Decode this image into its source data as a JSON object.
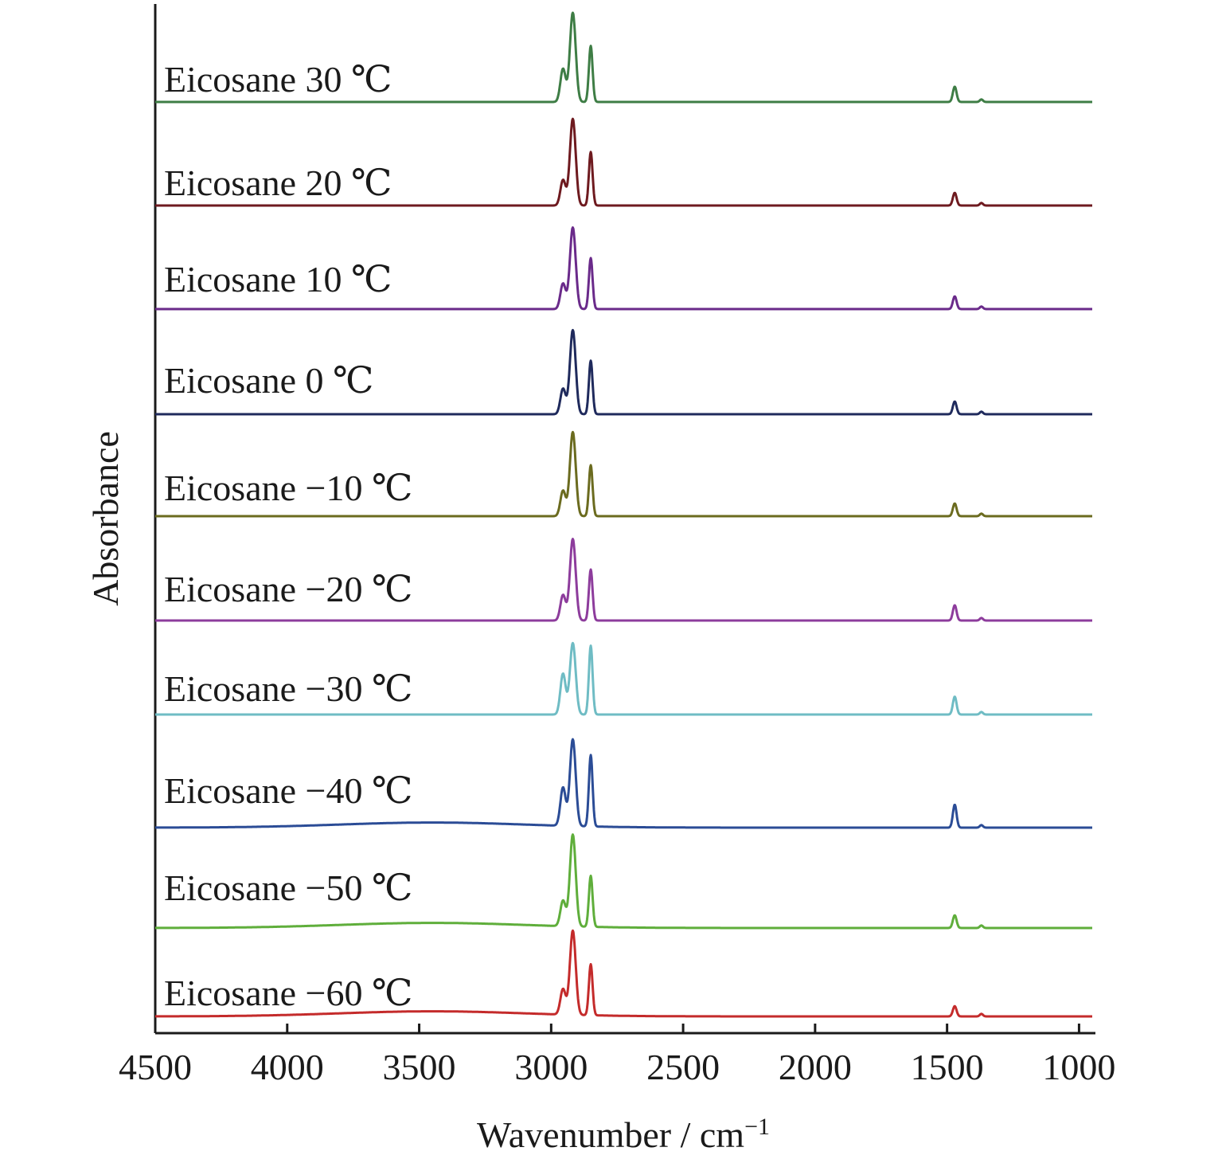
{
  "chart_data": {
    "type": "line",
    "xlabel": "Wavenumber / cm",
    "xlabel_superscript": "−1",
    "ylabel": "Absorbance",
    "xlim": [
      4500,
      950
    ],
    "x_reversed": true,
    "x_ticks": [
      4500,
      4000,
      3500,
      3000,
      2500,
      2000,
      1500,
      1000
    ],
    "x_tick_labels": [
      "4500",
      "4000",
      "3500",
      "3000",
      "2500",
      "2000",
      "1500",
      "1000"
    ],
    "grid": false,
    "legend": "none (labels placed above each trace)",
    "stacking": "vertically offset spectra, 30 ℃ at top to −60 ℃ at bottom",
    "peaks_cm-1": [
      2955,
      2918,
      2850,
      1471,
      1370
    ],
    "series": [
      {
        "name": "Eicosane 30 ℃",
        "color": "#3e7d45",
        "peak_heights": [
          0.13,
          0.35,
          0.22,
          0.06,
          0.01
        ],
        "baseline_drift": 0.0
      },
      {
        "name": "Eicosane 20 ℃",
        "color": "#6e1a1f",
        "peak_heights": [
          0.1,
          0.34,
          0.21,
          0.05,
          0.01
        ],
        "baseline_drift": 0.0
      },
      {
        "name": "Eicosane 10 ℃",
        "color": "#6a2a8a",
        "peak_heights": [
          0.1,
          0.32,
          0.2,
          0.05,
          0.01
        ],
        "baseline_drift": 0.0
      },
      {
        "name": "Eicosane 0 ℃",
        "color": "#1f2a5c",
        "peak_heights": [
          0.1,
          0.33,
          0.21,
          0.05,
          0.01
        ],
        "baseline_drift": 0.0
      },
      {
        "name": "Eicosane −10 ℃",
        "color": "#6b6b1f",
        "peak_heights": [
          0.1,
          0.33,
          0.2,
          0.05,
          0.01
        ],
        "baseline_drift": 0.0
      },
      {
        "name": "Eicosane −20 ℃",
        "color": "#8d3c9c",
        "peak_heights": [
          0.1,
          0.32,
          0.2,
          0.06,
          0.01
        ],
        "baseline_drift": 0.0
      },
      {
        "name": "Eicosane −30 ℃",
        "color": "#6fbcc4",
        "peak_heights": [
          0.16,
          0.28,
          0.27,
          0.07,
          0.01
        ],
        "baseline_drift": 0.0
      },
      {
        "name": "Eicosane −40 ℃",
        "color": "#2b4c96",
        "peak_heights": [
          0.15,
          0.34,
          0.28,
          0.09,
          0.01
        ],
        "baseline_drift": 0.02
      },
      {
        "name": "Eicosane −50 ℃",
        "color": "#5fae3b",
        "peak_heights": [
          0.1,
          0.36,
          0.2,
          0.05,
          0.01
        ],
        "baseline_drift": 0.02
      },
      {
        "name": "Eicosane −60 ℃",
        "color": "#c42b2b",
        "peak_heights": [
          0.1,
          0.33,
          0.2,
          0.04,
          0.01
        ],
        "baseline_drift": 0.02
      }
    ]
  }
}
